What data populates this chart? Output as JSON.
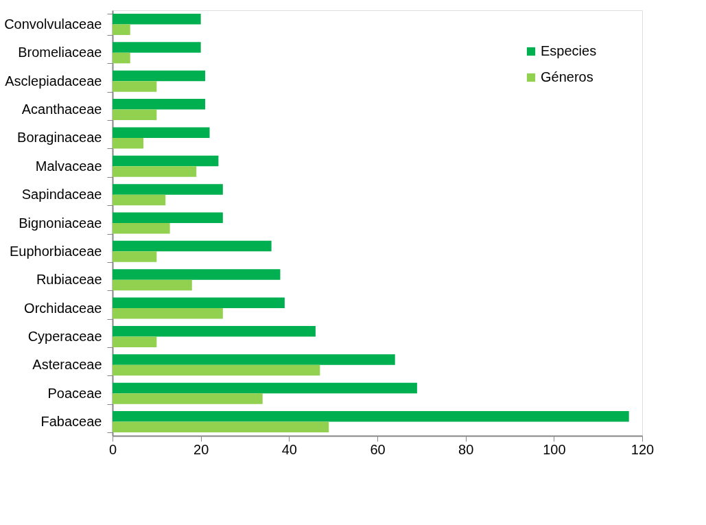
{
  "chart_data": {
    "type": "bar",
    "orientation": "horizontal",
    "categories": [
      "Convolvulaceae",
      "Bromeliaceae",
      "Asclepiadaceae",
      "Acanthaceae",
      "Boraginaceae",
      "Malvaceae",
      "Sapindaceae",
      "Bignoniaceae",
      "Euphorbiaceae",
      "Rubiaceae",
      "Orchidaceae",
      "Cyperaceae",
      "Asteraceae",
      "Poaceae",
      "Fabaceae"
    ],
    "series": [
      {
        "name": "Especies",
        "color": "#00b050",
        "values": [
          20,
          20,
          21,
          21,
          22,
          24,
          25,
          25,
          36,
          38,
          39,
          46,
          64,
          69,
          117
        ]
      },
      {
        "name": "Géneros",
        "color": "#92d050",
        "values": [
          4,
          4,
          10,
          10,
          7,
          19,
          12,
          13,
          10,
          18,
          25,
          10,
          47,
          34,
          49
        ]
      }
    ],
    "xlim": [
      0,
      120
    ],
    "xticks": [
      0,
      20,
      40,
      60,
      80,
      100,
      120
    ],
    "grid": false,
    "legend": "top right"
  }
}
